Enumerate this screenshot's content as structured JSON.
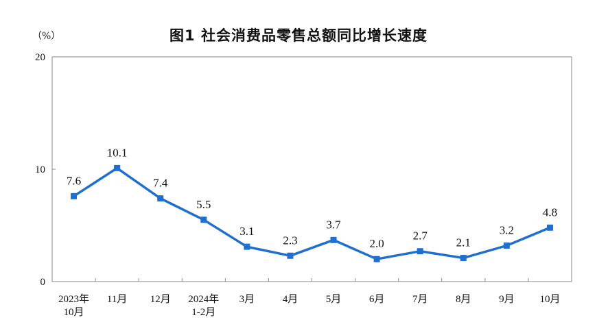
{
  "chart_data": {
    "type": "line",
    "title": "图1  社会消费品零售总额同比增长速度",
    "unit_label": "（%）",
    "x": [
      [
        "2023年",
        "10月"
      ],
      [
        "11月"
      ],
      [
        "12月"
      ],
      [
        "2024年",
        "1-2月"
      ],
      [
        "3月"
      ],
      [
        "4月"
      ],
      [
        "5月"
      ],
      [
        "6月"
      ],
      [
        "7月"
      ],
      [
        "8月"
      ],
      [
        "9月"
      ],
      [
        "10月"
      ]
    ],
    "values": [
      7.6,
      10.1,
      7.4,
      5.5,
      3.1,
      2.3,
      3.7,
      2.0,
      2.7,
      2.1,
      3.2,
      4.8
    ],
    "data_labels": [
      "7.6",
      "10.1",
      "7.4",
      "5.5",
      "3.1",
      "2.3",
      "3.7",
      "2.0",
      "2.7",
      "2.1",
      "3.2",
      "4.8"
    ],
    "yticks": [
      "0",
      "10",
      "20"
    ],
    "ytick_values": [
      0,
      10,
      20
    ],
    "ylim": [
      0,
      20
    ],
    "grid": false,
    "line_color": "#1f6fd1"
  }
}
